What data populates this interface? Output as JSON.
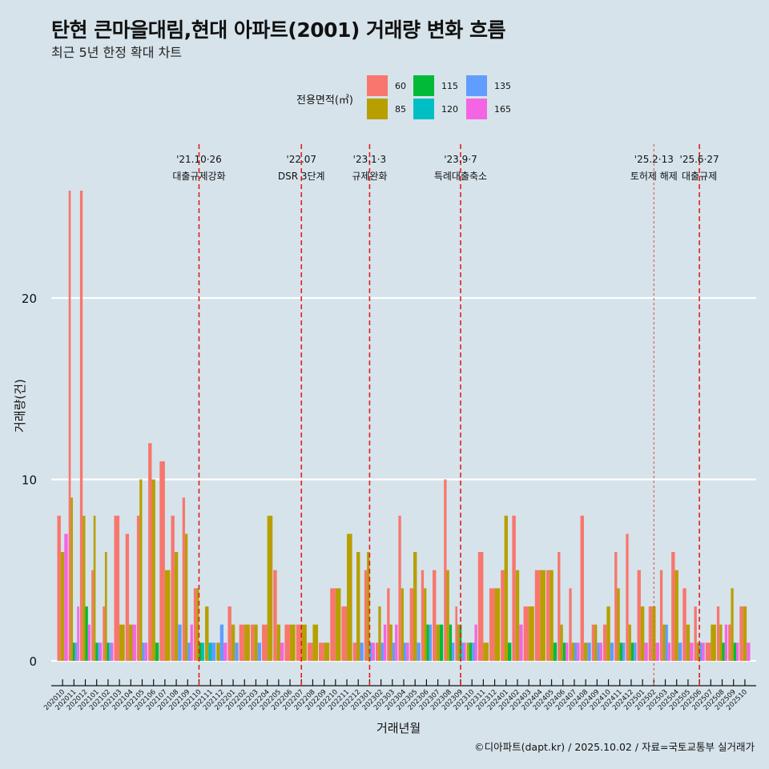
{
  "header": {
    "title": "탄현 큰마을대림,현대 아파트(2001) 거래량 변화 흐름",
    "subtitle": "최근 5년 한정 확대 차트"
  },
  "legend": {
    "title": "전용면적(㎡)",
    "items": [
      {
        "label": "60",
        "color": "#F8766D"
      },
      {
        "label": "85",
        "color": "#B79F00"
      },
      {
        "label": "115",
        "color": "#00BA38"
      },
      {
        "label": "120",
        "color": "#00BFC4"
      },
      {
        "label": "135",
        "color": "#619CFF"
      },
      {
        "label": "165",
        "color": "#F564E3"
      }
    ]
  },
  "caption": "©디아파트(dapt.kr) / 2025.10.02 / 자료=국토교통부 실거래가",
  "chart_data": {
    "type": "bar",
    "title": "탄현 큰마을대림,현대 아파트(2001) 거래량 변화 흐름",
    "subtitle": "최근 5년 한정 확대 차트",
    "xlabel": "거래년월",
    "ylabel": "거래량(건)",
    "ylim": [
      -1,
      26
    ],
    "yticks": [
      0,
      10,
      20
    ],
    "grid": true,
    "legend_position": "top",
    "categories": [
      "202010",
      "202011",
      "202012",
      "202101",
      "202102",
      "202103",
      "202104",
      "202105",
      "202106",
      "202107",
      "202108",
      "202109",
      "202110",
      "202111",
      "202112",
      "202201",
      "202202",
      "202203",
      "202204",
      "202205",
      "202206",
      "202207",
      "202208",
      "202209",
      "202210",
      "202211",
      "202212",
      "202301",
      "202302",
      "202303",
      "202304",
      "202305",
      "202306",
      "202307",
      "202308",
      "202309",
      "202310",
      "202311",
      "202312",
      "202401",
      "202402",
      "202403",
      "202404",
      "202405",
      "202406",
      "202407",
      "202408",
      "202409",
      "202410",
      "202411",
      "202412",
      "202501",
      "202502",
      "202503",
      "202504",
      "202505",
      "202506",
      "202507",
      "202508",
      "202509",
      "202510"
    ],
    "series": [
      {
        "name": "60",
        "values": [
          8,
          26,
          26,
          5,
          3,
          8,
          7,
          8,
          12,
          11,
          8,
          9,
          4,
          0,
          0,
          3,
          2,
          2,
          2,
          5,
          2,
          2,
          1,
          1,
          4,
          3,
          1,
          5,
          1,
          4,
          8,
          4,
          5,
          5,
          10,
          3,
          0,
          6,
          4,
          5,
          8,
          3,
          5,
          5,
          6,
          4,
          8,
          2,
          2,
          6,
          7,
          5,
          3,
          5,
          6,
          4,
          3,
          1,
          3,
          2,
          3
        ]
      },
      {
        "name": "85",
        "values": [
          6,
          9,
          8,
          8,
          6,
          2,
          2,
          10,
          10,
          5,
          6,
          7,
          4,
          3,
          1,
          2,
          2,
          2,
          8,
          2,
          2,
          2,
          2,
          1,
          4,
          7,
          6,
          6,
          3,
          2,
          4,
          6,
          4,
          2,
          5,
          2,
          1,
          1,
          4,
          8,
          5,
          3,
          5,
          5,
          2,
          1,
          1,
          2,
          3,
          4,
          2,
          3,
          3,
          2,
          5,
          2,
          1,
          2,
          2,
          4,
          3
        ]
      },
      {
        "name": "115",
        "values": [
          0,
          1,
          3,
          1,
          1,
          0,
          0,
          0,
          1,
          0,
          0,
          0,
          1,
          0,
          0,
          0,
          0,
          0,
          0,
          0,
          0,
          0,
          0,
          0,
          0,
          0,
          0,
          0,
          0,
          0,
          0,
          0,
          2,
          2,
          2,
          2,
          1,
          0,
          0,
          1,
          0,
          0,
          0,
          1,
          1,
          0,
          0,
          0,
          0,
          1,
          1,
          0,
          0,
          0,
          0,
          0,
          0,
          0,
          1,
          1,
          0
        ]
      },
      {
        "name": "120",
        "values": [
          0,
          0,
          0,
          0,
          0,
          0,
          0,
          0,
          0,
          0,
          0,
          0,
          1,
          1,
          0,
          0,
          0,
          0,
          0,
          0,
          0,
          0,
          0,
          0,
          0,
          0,
          0,
          0,
          0,
          0,
          0,
          0,
          0,
          0,
          0,
          0,
          0,
          0,
          0,
          0,
          0,
          0,
          0,
          0,
          0,
          0,
          0,
          0,
          0,
          0,
          0,
          0,
          0,
          0,
          0,
          0,
          0,
          0,
          0,
          0,
          0
        ]
      },
      {
        "name": "135",
        "values": [
          0,
          1,
          0,
          1,
          1,
          0,
          0,
          1,
          0,
          0,
          2,
          1,
          0,
          1,
          2,
          1,
          0,
          1,
          0,
          0,
          0,
          0,
          0,
          0,
          0,
          0,
          1,
          1,
          1,
          1,
          1,
          1,
          2,
          0,
          1,
          1,
          1,
          0,
          0,
          0,
          0,
          0,
          0,
          0,
          0,
          1,
          1,
          1,
          1,
          1,
          1,
          0,
          0,
          2,
          1,
          0,
          1,
          0,
          0,
          0,
          0
        ]
      },
      {
        "name": "165",
        "values": [
          7,
          3,
          2,
          1,
          1,
          0,
          2,
          1,
          0,
          0,
          0,
          2,
          0,
          0,
          1,
          0,
          0,
          0,
          0,
          1,
          0,
          0,
          0,
          0,
          0,
          0,
          0,
          1,
          2,
          2,
          1,
          0,
          0,
          0,
          0,
          1,
          2,
          0,
          0,
          0,
          2,
          0,
          0,
          0,
          1,
          1,
          0,
          1,
          0,
          0,
          0,
          1,
          1,
          1,
          0,
          1,
          1,
          0,
          2,
          1,
          1
        ]
      }
    ],
    "events": [
      {
        "month": "202110",
        "label_date": "'21.10·26",
        "label_text": "대출규제강화",
        "style": "dashed"
      },
      {
        "month": "202207",
        "label_date": "'22.07",
        "label_text": "DSR 3단계",
        "style": "dashed"
      },
      {
        "month": "202301",
        "label_date": "'23.1·3",
        "label_text": "규제완화",
        "style": "dashed"
      },
      {
        "month": "202309",
        "label_date": "'23.9·7",
        "label_text": "특례대출축소",
        "style": "dashed"
      },
      {
        "month": "202502",
        "label_date": "'25.2·13",
        "label_text": "토허제 해제",
        "style": "dotted"
      },
      {
        "month": "202506",
        "label_date": "'25.6·27",
        "label_text": "대출규제",
        "style": "dashed"
      }
    ]
  }
}
